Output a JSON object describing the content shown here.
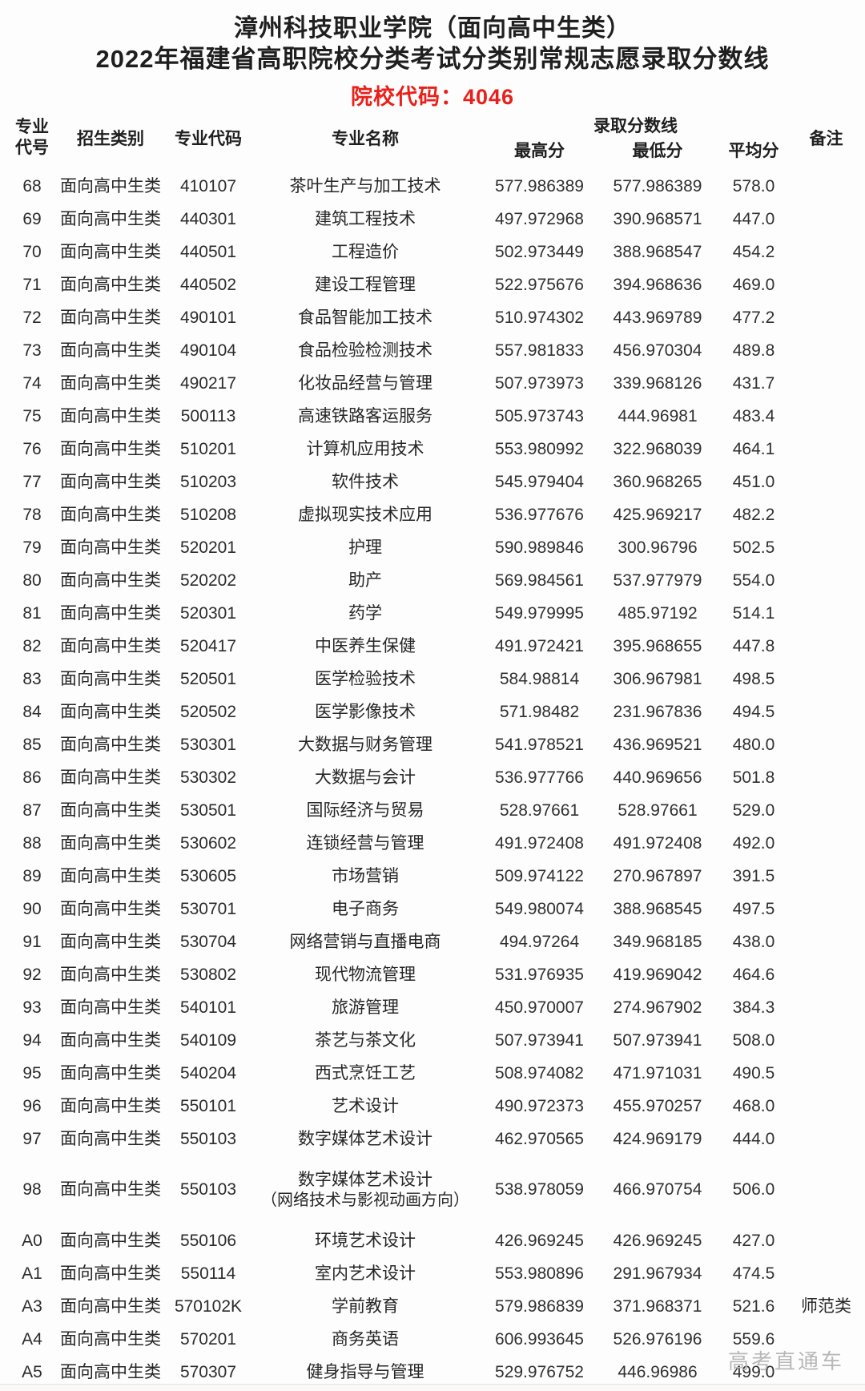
{
  "header": {
    "title_line1": "漳州科技职业学院（面向高中生类）",
    "title_line2": "2022年福建省高职院校分类考试分类别常规志愿录取分数线",
    "school_code": "院校代码：4046",
    "accent_color": "#e9201a"
  },
  "table": {
    "columns": {
      "major_no": "专业\n代号",
      "category": "招生类别",
      "major_code": "专业代码",
      "major_name": "专业名称",
      "score_group": "录取分数线",
      "max": "最高分",
      "min": "最低分",
      "avg": "平均分",
      "remark": "备注"
    },
    "rows": [
      {
        "no": "68",
        "category": "面向高中生类",
        "code": "410107",
        "name": "茶叶生产与加工技术",
        "max": "577.986389",
        "min": "577.986389",
        "avg": "578.0",
        "remark": ""
      },
      {
        "no": "69",
        "category": "面向高中生类",
        "code": "440301",
        "name": "建筑工程技术",
        "max": "497.972968",
        "min": "390.968571",
        "avg": "447.0",
        "remark": ""
      },
      {
        "no": "70",
        "category": "面向高中生类",
        "code": "440501",
        "name": "工程造价",
        "max": "502.973449",
        "min": "388.968547",
        "avg": "454.2",
        "remark": ""
      },
      {
        "no": "71",
        "category": "面向高中生类",
        "code": "440502",
        "name": "建设工程管理",
        "max": "522.975676",
        "min": "394.968636",
        "avg": "469.0",
        "remark": ""
      },
      {
        "no": "72",
        "category": "面向高中生类",
        "code": "490101",
        "name": "食品智能加工技术",
        "max": "510.974302",
        "min": "443.969789",
        "avg": "477.2",
        "remark": ""
      },
      {
        "no": "73",
        "category": "面向高中生类",
        "code": "490104",
        "name": "食品检验检测技术",
        "max": "557.981833",
        "min": "456.970304",
        "avg": "489.8",
        "remark": ""
      },
      {
        "no": "74",
        "category": "面向高中生类",
        "code": "490217",
        "name": "化妆品经营与管理",
        "max": "507.973973",
        "min": "339.968126",
        "avg": "431.7",
        "remark": ""
      },
      {
        "no": "75",
        "category": "面向高中生类",
        "code": "500113",
        "name": "高速铁路客运服务",
        "max": "505.973743",
        "min": "444.96981",
        "avg": "483.4",
        "remark": ""
      },
      {
        "no": "76",
        "category": "面向高中生类",
        "code": "510201",
        "name": "计算机应用技术",
        "max": "553.980992",
        "min": "322.968039",
        "avg": "464.1",
        "remark": ""
      },
      {
        "no": "77",
        "category": "面向高中生类",
        "code": "510203",
        "name": "软件技术",
        "max": "545.979404",
        "min": "360.968265",
        "avg": "451.0",
        "remark": ""
      },
      {
        "no": "78",
        "category": "面向高中生类",
        "code": "510208",
        "name": "虚拟现实技术应用",
        "max": "536.977676",
        "min": "425.969217",
        "avg": "482.2",
        "remark": ""
      },
      {
        "no": "79",
        "category": "面向高中生类",
        "code": "520201",
        "name": "护理",
        "max": "590.989846",
        "min": "300.96796",
        "avg": "502.5",
        "remark": ""
      },
      {
        "no": "80",
        "category": "面向高中生类",
        "code": "520202",
        "name": "助产",
        "max": "569.984561",
        "min": "537.977979",
        "avg": "554.0",
        "remark": ""
      },
      {
        "no": "81",
        "category": "面向高中生类",
        "code": "520301",
        "name": "药学",
        "max": "549.979995",
        "min": "485.97192",
        "avg": "514.1",
        "remark": ""
      },
      {
        "no": "82",
        "category": "面向高中生类",
        "code": "520417",
        "name": "中医养生保健",
        "max": "491.972421",
        "min": "395.968655",
        "avg": "447.8",
        "remark": ""
      },
      {
        "no": "83",
        "category": "面向高中生类",
        "code": "520501",
        "name": "医学检验技术",
        "max": "584.98814",
        "min": "306.967981",
        "avg": "498.5",
        "remark": ""
      },
      {
        "no": "84",
        "category": "面向高中生类",
        "code": "520502",
        "name": "医学影像技术",
        "max": "571.98482",
        "min": "231.967836",
        "avg": "494.5",
        "remark": ""
      },
      {
        "no": "85",
        "category": "面向高中生类",
        "code": "530301",
        "name": "大数据与财务管理",
        "max": "541.978521",
        "min": "436.969521",
        "avg": "480.0",
        "remark": ""
      },
      {
        "no": "86",
        "category": "面向高中生类",
        "code": "530302",
        "name": "大数据与会计",
        "max": "536.977766",
        "min": "440.969656",
        "avg": "501.8",
        "remark": ""
      },
      {
        "no": "87",
        "category": "面向高中生类",
        "code": "530501",
        "name": "国际经济与贸易",
        "max": "528.97661",
        "min": "528.97661",
        "avg": "529.0",
        "remark": ""
      },
      {
        "no": "88",
        "category": "面向高中生类",
        "code": "530602",
        "name": "连锁经营与管理",
        "max": "491.972408",
        "min": "491.972408",
        "avg": "492.0",
        "remark": ""
      },
      {
        "no": "89",
        "category": "面向高中生类",
        "code": "530605",
        "name": "市场营销",
        "max": "509.974122",
        "min": "270.967897",
        "avg": "391.5",
        "remark": ""
      },
      {
        "no": "90",
        "category": "面向高中生类",
        "code": "530701",
        "name": "电子商务",
        "max": "549.980074",
        "min": "388.968545",
        "avg": "497.5",
        "remark": ""
      },
      {
        "no": "91",
        "category": "面向高中生类",
        "code": "530704",
        "name": "网络营销与直播电商",
        "max": "494.97264",
        "min": "349.968185",
        "avg": "438.0",
        "remark": ""
      },
      {
        "no": "92",
        "category": "面向高中生类",
        "code": "530802",
        "name": "现代物流管理",
        "max": "531.976935",
        "min": "419.969042",
        "avg": "464.6",
        "remark": ""
      },
      {
        "no": "93",
        "category": "面向高中生类",
        "code": "540101",
        "name": "旅游管理",
        "max": "450.970007",
        "min": "274.967902",
        "avg": "384.3",
        "remark": ""
      },
      {
        "no": "94",
        "category": "面向高中生类",
        "code": "540109",
        "name": "茶艺与茶文化",
        "max": "507.973941",
        "min": "507.973941",
        "avg": "508.0",
        "remark": ""
      },
      {
        "no": "95",
        "category": "面向高中生类",
        "code": "540204",
        "name": "西式烹饪工艺",
        "max": "508.974082",
        "min": "471.971031",
        "avg": "490.5",
        "remark": ""
      },
      {
        "no": "96",
        "category": "面向高中生类",
        "code": "550101",
        "name": "艺术设计",
        "max": "490.972373",
        "min": "455.970257",
        "avg": "468.0",
        "remark": ""
      },
      {
        "no": "97",
        "category": "面向高中生类",
        "code": "550103",
        "name": "数字媒体艺术设计",
        "max": "462.970565",
        "min": "424.969179",
        "avg": "444.0",
        "remark": ""
      },
      {
        "no": "98",
        "category": "面向高中生类",
        "code": "550103",
        "name": "数字媒体艺术设计",
        "name2": "（网络技术与影视动画方向）",
        "max": "538.978059",
        "min": "466.970754",
        "avg": "506.0",
        "remark": ""
      },
      {
        "no": "A0",
        "category": "面向高中生类",
        "code": "550106",
        "name": "环境艺术设计",
        "max": "426.969245",
        "min": "426.969245",
        "avg": "427.0",
        "remark": ""
      },
      {
        "no": "A1",
        "category": "面向高中生类",
        "code": "550114",
        "name": "室内艺术设计",
        "max": "553.980896",
        "min": "291.967934",
        "avg": "474.5",
        "remark": ""
      },
      {
        "no": "A3",
        "category": "面向高中生类",
        "code": "570102K",
        "name": "学前教育",
        "max": "579.986839",
        "min": "371.968371",
        "avg": "521.6",
        "remark": "师范类"
      },
      {
        "no": "A4",
        "category": "面向高中生类",
        "code": "570201",
        "name": "商务英语",
        "max": "606.993645",
        "min": "526.976196",
        "avg": "559.6",
        "remark": ""
      },
      {
        "no": "A5",
        "category": "面向高中生类",
        "code": "570307",
        "name": "健身指导与管理",
        "max": "529.976752",
        "min": "446.96986",
        "avg": "499.0",
        "remark": ""
      }
    ]
  },
  "footer": {
    "watermark": "高考直通车"
  }
}
